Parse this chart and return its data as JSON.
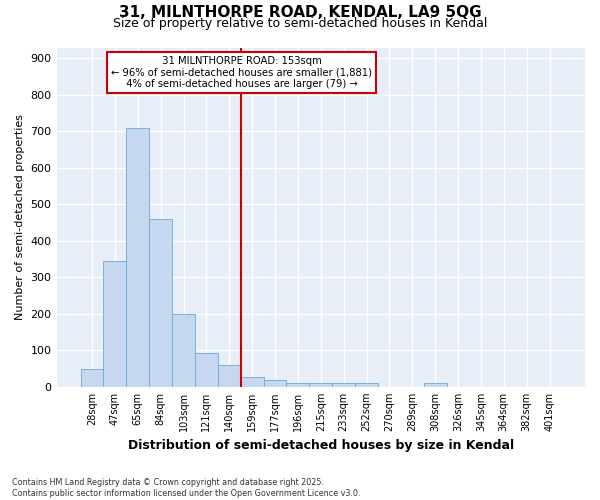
{
  "title_line1": "31, MILNTHORPE ROAD, KENDAL, LA9 5QG",
  "title_line2": "Size of property relative to semi-detached houses in Kendal",
  "xlabel": "Distribution of semi-detached houses by size in Kendal",
  "ylabel": "Number of semi-detached properties",
  "categories": [
    "28sqm",
    "47sqm",
    "65sqm",
    "84sqm",
    "103sqm",
    "121sqm",
    "140sqm",
    "159sqm",
    "177sqm",
    "196sqm",
    "215sqm",
    "233sqm",
    "252sqm",
    "270sqm",
    "289sqm",
    "308sqm",
    "326sqm",
    "345sqm",
    "364sqm",
    "382sqm",
    "401sqm"
  ],
  "values": [
    48,
    345,
    710,
    460,
    200,
    93,
    60,
    27,
    20,
    10,
    10,
    10,
    10,
    0,
    0,
    10,
    0,
    0,
    0,
    0,
    0
  ],
  "bar_color": "#c5d8f0",
  "bar_edge_color": "#6aaad4",
  "vline_color": "#cc0000",
  "vline_index": 7,
  "annotation_title": "31 MILNTHORPE ROAD: 153sqm",
  "annotation_line1": "← 96% of semi-detached houses are smaller (1,881)",
  "annotation_line2": "4% of semi-detached houses are larger (79) →",
  "annotation_box_facecolor": "#ffffff",
  "annotation_box_edgecolor": "#cc0000",
  "ylim": [
    0,
    930
  ],
  "yticks": [
    0,
    100,
    200,
    300,
    400,
    500,
    600,
    700,
    800,
    900
  ],
  "plot_bg_color": "#e8eef8",
  "fig_bg_color": "#ffffff",
  "grid_color": "#ffffff",
  "footer_line1": "Contains HM Land Registry data © Crown copyright and database right 2025.",
  "footer_line2": "Contains public sector information licensed under the Open Government Licence v3.0."
}
